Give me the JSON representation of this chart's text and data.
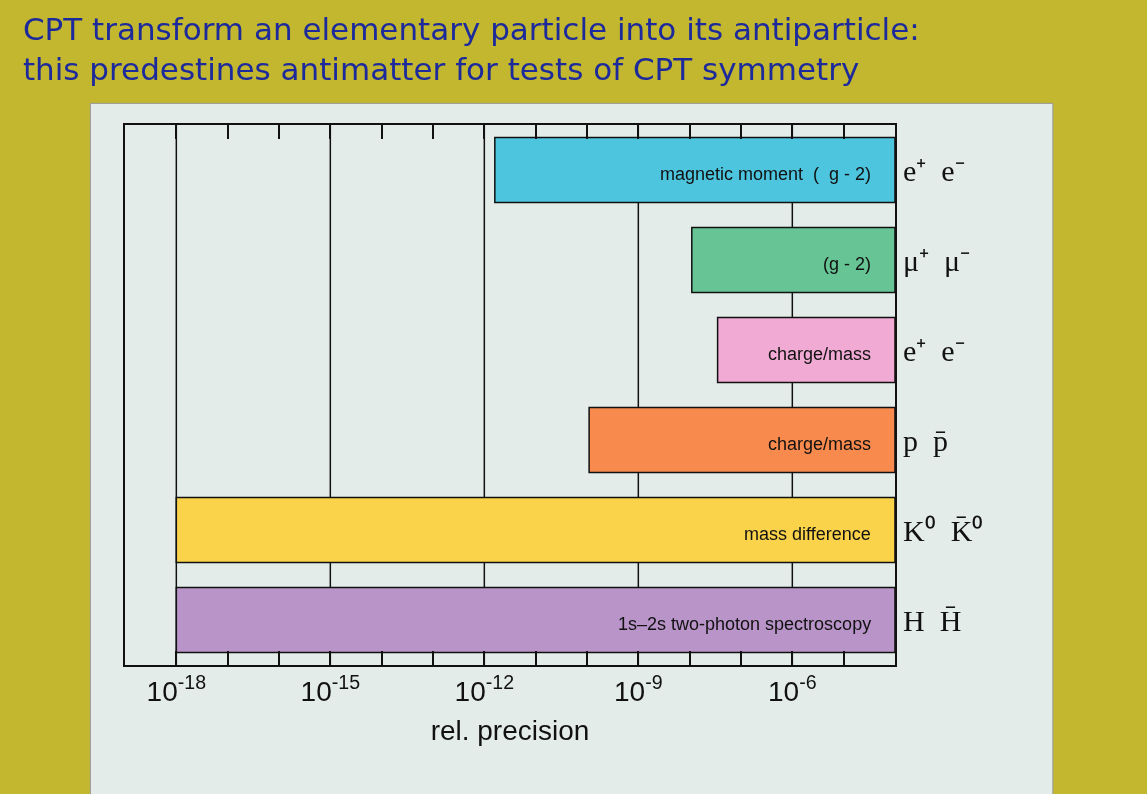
{
  "chart_data": {
    "type": "bar",
    "orientation": "horizontal",
    "title": "CPT transform an elementary particle into its antiparticle: this predestines antimatter for tests of CPT symmetry",
    "xlabel": "rel. precision",
    "categories": [
      "e⁺  e⁻",
      "μ⁺  μ⁻",
      "e⁺  e⁻",
      "p  p̄",
      "K⁰  K̄⁰",
      "H  H̄"
    ],
    "base": [
      1.6e-12,
      1.1e-08,
      3.5e-08,
      1.1e-10,
      1e-18,
      1e-18
    ],
    "values": [
      9.99e-05,
      9.99e-05,
      9.99e-05,
      9.99e-05,
      9.99e-05,
      9.99e-05
    ],
    "colors": [
      "#4dc5de",
      "#66c495",
      "#f0aad4",
      "#f78a4c",
      "#fbd34a",
      "#b894c8"
    ],
    "log": "x",
    "xlim": [
      1e-19,
      0.0001
    ],
    "xticks": [
      {
        "value": 1e-18,
        "label": "10$^{-18}$"
      },
      {
        "value": 1e-17,
        "label": null
      },
      {
        "value": 1e-16,
        "label": null
      },
      {
        "value": 1e-15,
        "label": "10$^{-15}$"
      },
      {
        "value": 1e-14,
        "label": null
      },
      {
        "value": 1e-13,
        "label": null
      },
      {
        "value": 1e-12,
        "label": "10$^{-12}$"
      },
      {
        "value": 1e-11,
        "label": null
      },
      {
        "value": 1e-10,
        "label": null
      },
      {
        "value": 1e-09,
        "label": "10$^{-9}$"
      },
      {
        "value": 1e-08,
        "label": null
      },
      {
        "value": 1e-07,
        "label": null
      },
      {
        "value": 1e-06,
        "label": "10$^{-6}$"
      },
      {
        "value": 1e-05,
        "label": null
      }
    ],
    "grid": "x",
    "annotations": [
      "magnetic moment  (  g - 2)",
      "(g - 2)",
      "charge/mass",
      "charge/mass",
      "mass difference",
      "1s–2s two-photon spectroscopy"
    ]
  }
}
